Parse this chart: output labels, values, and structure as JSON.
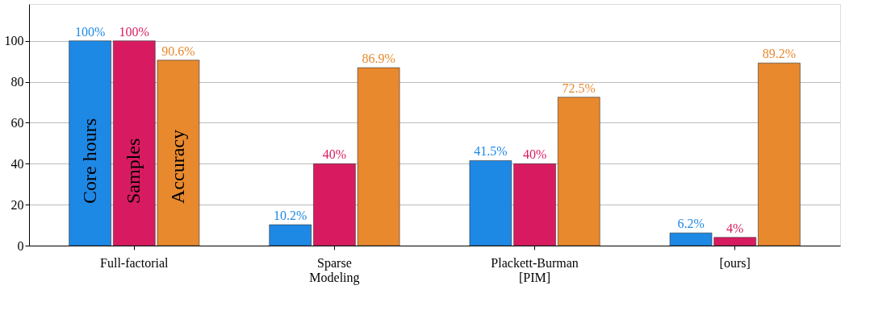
{
  "chart_data": {
    "type": "bar",
    "categories": [
      "Full-factorial",
      "Sparse Modeling",
      "Plackett-Burman [PIM]",
      "[ours]"
    ],
    "series": [
      {
        "name": "Core hours",
        "color": "#1e88e5",
        "values": [
          100,
          10.2,
          41.5,
          6.2
        ],
        "value_labels": [
          "100%",
          "10.2%",
          "41.5%",
          "6.2%"
        ]
      },
      {
        "name": "Samples",
        "color": "#d81b60",
        "values": [
          100,
          40,
          40,
          4
        ],
        "value_labels": [
          "100%",
          "40%",
          "40%",
          "4%"
        ]
      },
      {
        "name": "Accuracy",
        "color": "#e8892e",
        "values": [
          90.6,
          86.9,
          72.5,
          89.2
        ],
        "value_labels": [
          "90.6%",
          "86.9%",
          "72.5%",
          "89.2%"
        ]
      }
    ],
    "ylim": [
      0,
      118
    ],
    "yticks": [
      0,
      20,
      40,
      60,
      80,
      100
    ],
    "grid": "y"
  }
}
